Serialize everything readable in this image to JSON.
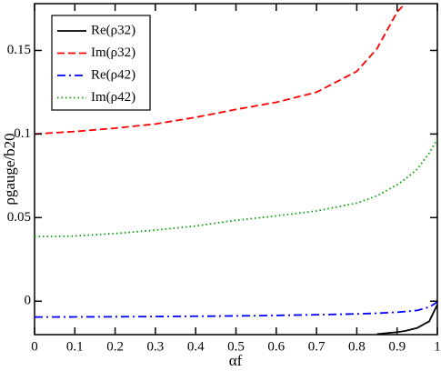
{
  "chart_data": {
    "type": "line",
    "xlabel": "αf",
    "ylabel": "ρgauge/b20",
    "x": [
      0,
      0.1,
      0.2,
      0.3,
      0.4,
      0.5,
      0.6,
      0.7,
      0.8,
      0.85,
      0.9,
      0.92,
      0.95,
      0.98,
      1
    ],
    "series": [
      {
        "name": "Re(ρ32)",
        "color": "#000000",
        "dash": "solid",
        "values": [
          null,
          null,
          null,
          null,
          null,
          null,
          null,
          null,
          null,
          -0.0197,
          -0.0185,
          -0.0178,
          -0.016,
          -0.012,
          -0.002
        ]
      },
      {
        "name": "Im(ρ32)",
        "color": "#ff0000",
        "dash": "dashed",
        "values": [
          0.1,
          0.1015,
          0.1035,
          0.106,
          0.11,
          0.1147,
          0.119,
          0.125,
          0.1375,
          0.151,
          0.173,
          0.178,
          null,
          null,
          null
        ]
      },
      {
        "name": "Re(ρ42)",
        "color": "#0000ff",
        "dash": "dashdot",
        "values": [
          -0.0095,
          -0.0094,
          -0.0093,
          -0.0092,
          -0.009,
          -0.0088,
          -0.0085,
          -0.0081,
          -0.0076,
          -0.0072,
          -0.0066,
          -0.0062,
          -0.0055,
          -0.0035,
          -0.0005
        ]
      },
      {
        "name": "Im(ρ42)",
        "color": "#00a000",
        "dash": "dotted",
        "values": [
          0.0386,
          0.039,
          0.0405,
          0.0425,
          0.045,
          0.0484,
          0.051,
          0.054,
          0.0587,
          0.063,
          0.0696,
          0.073,
          0.079,
          0.0886,
          0.097
        ]
      }
    ],
    "xlim": [
      0,
      1
    ],
    "ylim": [
      -0.02,
      0.178
    ],
    "xticks": [
      0,
      0.1,
      0.2,
      0.3,
      0.4,
      0.5,
      0.6,
      0.7,
      0.8,
      0.9,
      1
    ],
    "yticks": [
      0,
      0.05,
      0.1,
      0.15
    ],
    "legend": "upper-left"
  }
}
